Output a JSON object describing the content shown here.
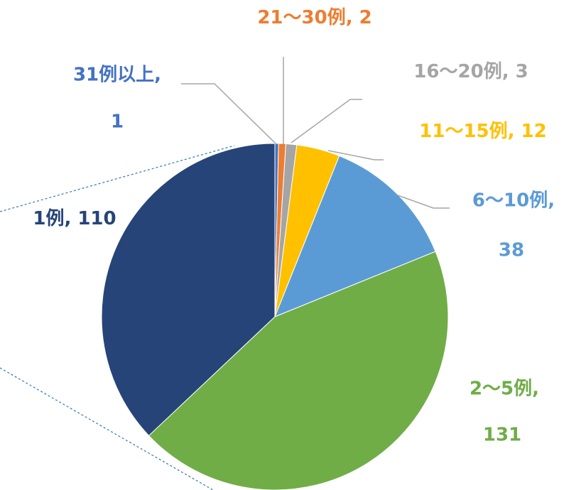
{
  "chart_data": {
    "type": "pie",
    "categories": [
      "31例以上,",
      "21～30例,",
      "16～20例,",
      "11～15例,",
      "6～10例,",
      "2～5例,",
      "1例,"
    ],
    "values": [
      1,
      2,
      3,
      12,
      38,
      131,
      110
    ],
    "colors": [
      "#4472c4",
      "#ed7d31",
      "#a5a5a5",
      "#ffc000",
      "#5b9bd5",
      "#70ad47",
      "#264478"
    ]
  }
}
